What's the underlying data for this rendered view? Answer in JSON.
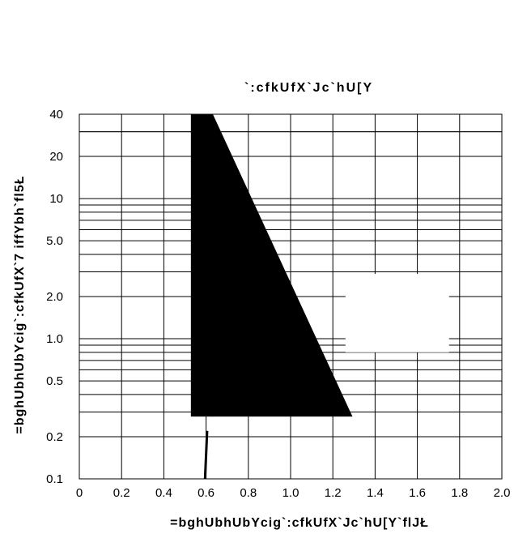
{
  "chart_data": {
    "type": "line",
    "title": "",
    "xlabel": "=bghUbhUbYcig`:cfkUfX`Jc`hU[Y`flJŁ",
    "ylabel": "=bghUbhUbYcig`:cfkUfX`7 iffYbh`fl5Ł",
    "xlim": [
      0,
      2.0
    ],
    "ylim": [
      0.1,
      40
    ],
    "y_scale": "log",
    "x_ticks": [
      "0",
      "0.2",
      "0.4",
      "0.6",
      "0.8",
      "1.0",
      "1.2",
      "1.4",
      "1.6",
      "1.8",
      "2.0"
    ],
    "y_ticks": [
      {
        "value": 40,
        "label": "40"
      },
      {
        "value": 20,
        "label": "20"
      },
      {
        "value": 10,
        "label": "10"
      },
      {
        "value": 5,
        "label": "5.0"
      },
      {
        "value": 2,
        "label": "2.0"
      },
      {
        "value": 1,
        "label": "1.0"
      },
      {
        "value": 0.5,
        "label": "0.5"
      },
      {
        "value": 0.2,
        "label": "0.2"
      },
      {
        "value": 0.1,
        "label": "0.1"
      }
    ],
    "grid": true,
    "series_label_text": "`:cfkUfX`Jc`hU[Y",
    "series": [
      {
        "values": [
          [
            0.53,
            40
          ],
          [
            0.53,
            0.28
          ],
          [
            0.63,
            0.28
          ],
          [
            0.63,
            40
          ]
        ]
      },
      {
        "values": [
          [
            0.63,
            40
          ],
          [
            1.29,
            0.28
          ]
        ]
      }
    ]
  }
}
